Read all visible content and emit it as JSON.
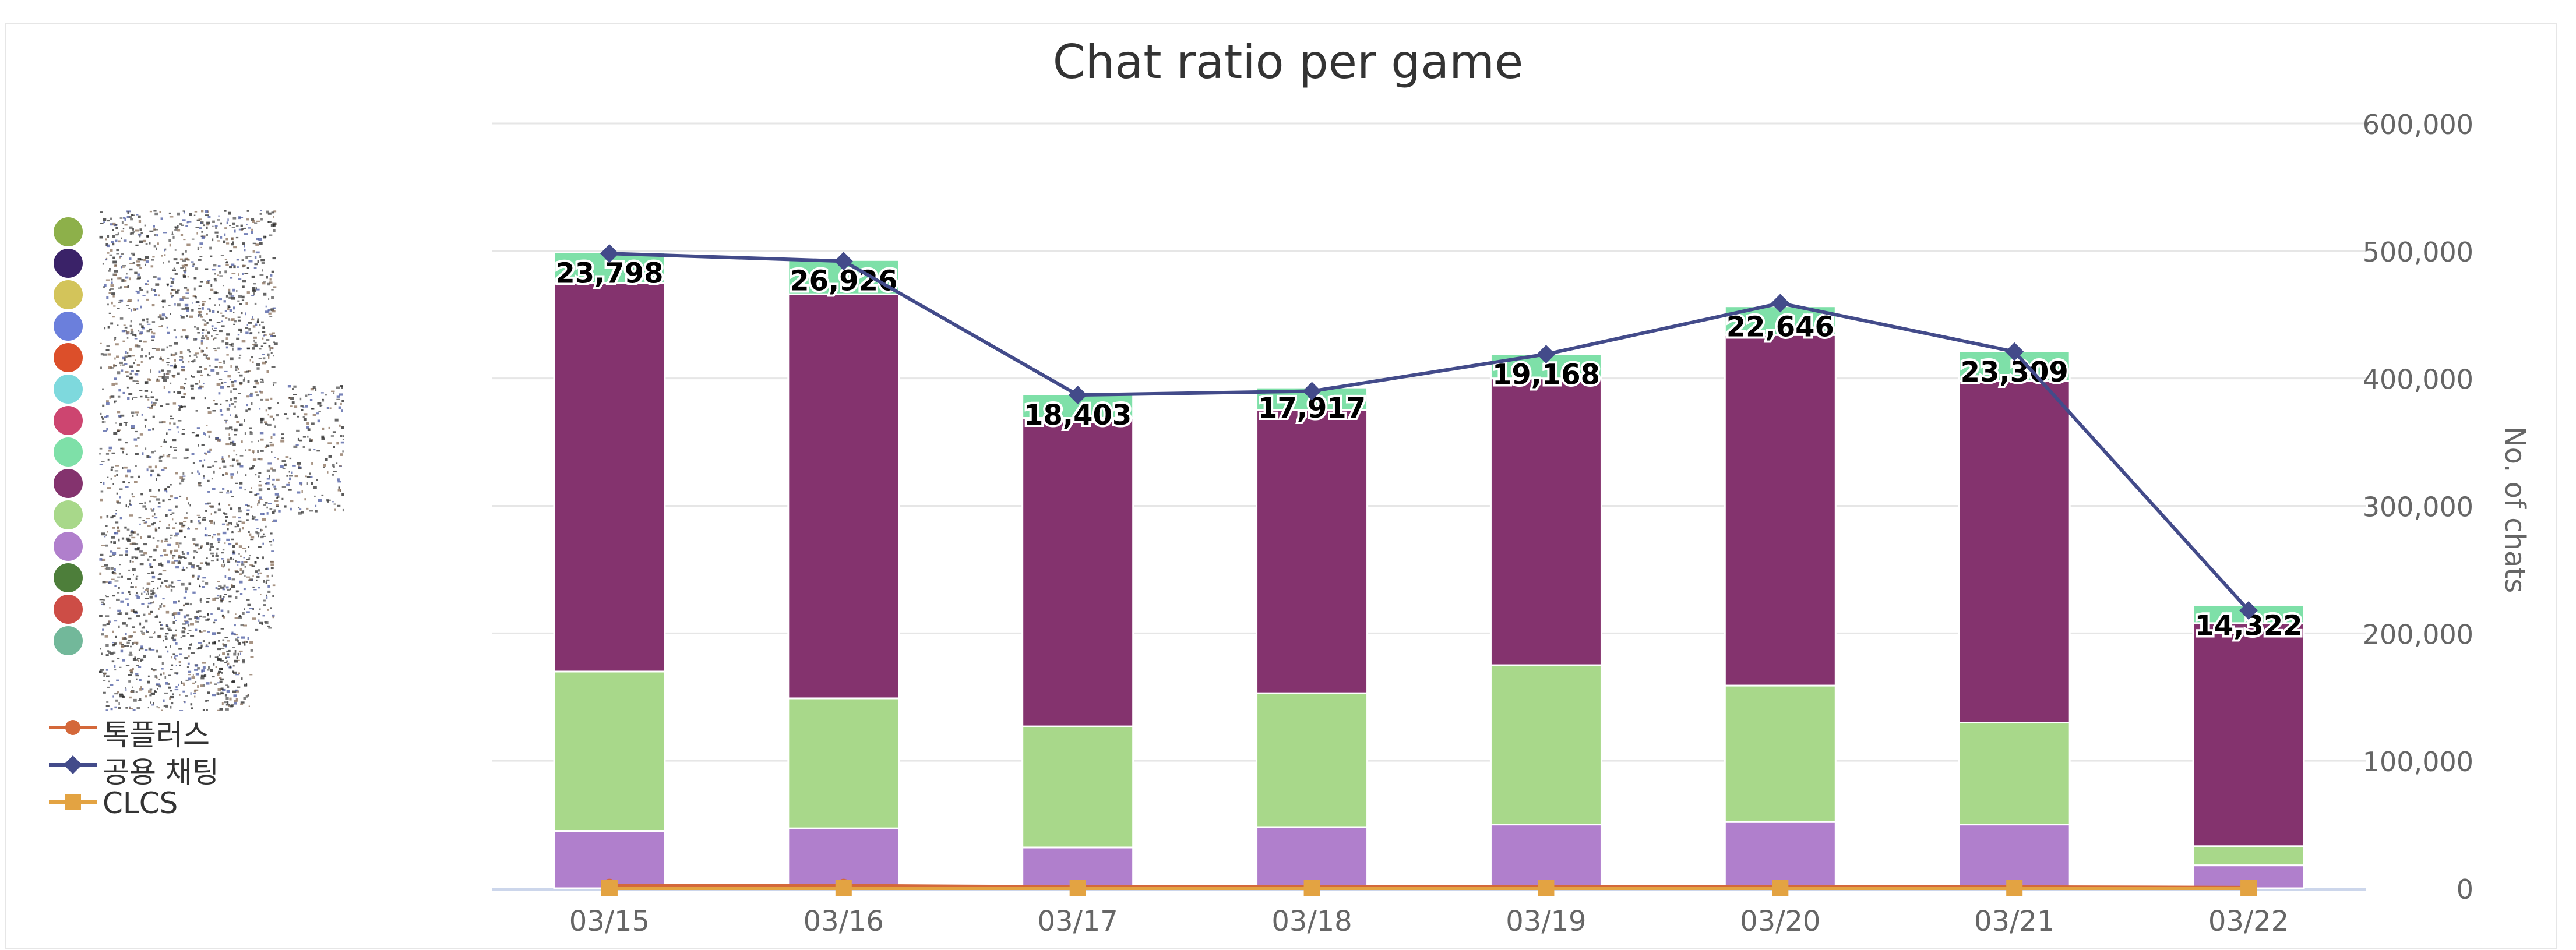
{
  "chart_data": {
    "type": "bar",
    "title": "Chat ratio per game",
    "categories": [
      "03/15",
      "03/16",
      "03/17",
      "03/18",
      "03/19",
      "03/20",
      "03/21",
      "03/22"
    ],
    "y_axis": {
      "position": "right",
      "label": "No. of chats",
      "min": 0,
      "max": 600000,
      "ticks": [
        "0",
        "100,000",
        "200,000",
        "300,000",
        "400,000",
        "500,000",
        "600,000"
      ],
      "tick_values": [
        0,
        100000,
        200000,
        300000,
        400000,
        500000,
        600000
      ]
    },
    "grid": true,
    "stacked_series": [
      {
        "color": "#b07fcc",
        "values": [
          45000,
          47000,
          32000,
          48000,
          50000,
          52000,
          50000,
          18000
        ]
      },
      {
        "color": "#a8d88a",
        "values": [
          125000,
          102000,
          95000,
          105000,
          125000,
          107000,
          80000,
          15000
        ]
      },
      {
        "color": "#84336e",
        "values": [
          305000,
          317000,
          242000,
          222000,
          225000,
          275000,
          268000,
          175000
        ]
      },
      {
        "color": "#7ee0a8",
        "values": [
          23798,
          26926,
          18403,
          17917,
          19168,
          22646,
          23309,
          14322
        ]
      }
    ],
    "bar_top_labels": [
      "23,798",
      "26,926",
      "18,403",
      "17,917",
      "19,168",
      "22,646",
      "23,309",
      "14,322"
    ],
    "line_series": [
      {
        "name": "톡플러스",
        "color": "#d4683a",
        "marker": "circle",
        "values": [
          2000,
          2000,
          1000,
          1000,
          1000,
          1000,
          1000,
          500
        ]
      },
      {
        "name": "공용 채팅",
        "color": "#434b8a",
        "marker": "diamond",
        "values": [
          498000,
          492000,
          387000,
          390000,
          419000,
          459000,
          421000,
          218000
        ]
      },
      {
        "name": "CLCS",
        "color": "#e3a342",
        "marker": "square",
        "values": [
          0,
          0,
          0,
          0,
          0,
          0,
          0,
          0
        ]
      }
    ],
    "legend": {
      "placement": "left",
      "dot_colors": [
        "#8db04a",
        "#3a2268",
        "#d3c45a",
        "#6b7fdc",
        "#dc4f2a",
        "#7ed9dd",
        "#cd4570",
        "#7ee0a8",
        "#84336e",
        "#a8d88a",
        "#b07fcc",
        "#4d7e3a",
        "#cd4d46",
        "#72b89a"
      ]
    }
  }
}
